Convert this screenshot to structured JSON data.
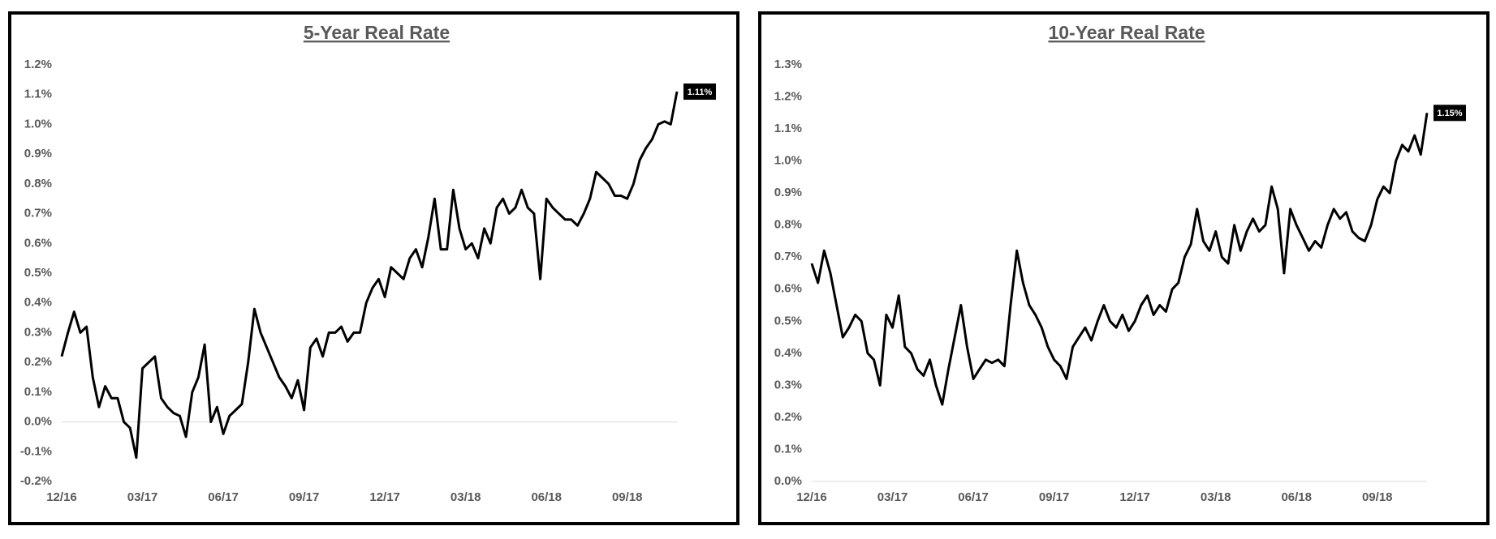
{
  "chart_data": [
    {
      "type": "line",
      "title": "5-Year Real Rate",
      "color": "#000000",
      "categories": [
        "12/16",
        null,
        null,
        null,
        null,
        null,
        null,
        null,
        null,
        null,
        null,
        null,
        null,
        "03/17",
        null,
        null,
        null,
        null,
        null,
        null,
        null,
        null,
        null,
        null,
        null,
        null,
        "06/17",
        null,
        null,
        null,
        null,
        null,
        null,
        null,
        null,
        null,
        null,
        null,
        null,
        "09/17",
        null,
        null,
        null,
        null,
        null,
        null,
        null,
        null,
        null,
        null,
        null,
        null,
        "12/17",
        null,
        null,
        null,
        null,
        null,
        null,
        null,
        null,
        null,
        null,
        null,
        null,
        "03/18",
        null,
        null,
        null,
        null,
        null,
        null,
        null,
        null,
        null,
        null,
        null,
        null,
        "06/18",
        null,
        null,
        null,
        null,
        null,
        null,
        null,
        null,
        null,
        null,
        null,
        null,
        "09/18",
        null,
        null,
        null,
        null,
        null,
        null,
        null,
        null
      ],
      "values": [
        0.22,
        0.3,
        0.37,
        0.3,
        0.32,
        0.15,
        0.05,
        0.12,
        0.08,
        0.08,
        0.0,
        -0.02,
        -0.12,
        0.18,
        0.2,
        0.22,
        0.08,
        0.05,
        0.03,
        0.02,
        -0.05,
        0.1,
        0.15,
        0.26,
        0.0,
        0.05,
        -0.04,
        0.02,
        0.04,
        0.06,
        0.2,
        0.38,
        0.3,
        0.25,
        0.2,
        0.15,
        0.12,
        0.08,
        0.14,
        0.04,
        0.25,
        0.28,
        0.22,
        0.3,
        0.3,
        0.32,
        0.27,
        0.3,
        0.3,
        0.4,
        0.45,
        0.48,
        0.42,
        0.52,
        0.5,
        0.48,
        0.55,
        0.58,
        0.52,
        0.62,
        0.75,
        0.58,
        0.58,
        0.78,
        0.65,
        0.58,
        0.6,
        0.55,
        0.65,
        0.6,
        0.72,
        0.75,
        0.7,
        0.72,
        0.78,
        0.72,
        0.7,
        0.48,
        0.75,
        0.72,
        0.7,
        0.68,
        0.68,
        0.66,
        0.7,
        0.75,
        0.84,
        0.82,
        0.8,
        0.76,
        0.76,
        0.75,
        0.8,
        0.88,
        0.92,
        0.95,
        1.0,
        1.01,
        1.0,
        1.11
      ],
      "value_labels": [
        null,
        null,
        null,
        null,
        null,
        null,
        null,
        null,
        null,
        null,
        null,
        null,
        null,
        null,
        null,
        null,
        null,
        null,
        null,
        null,
        null,
        null,
        null,
        null,
        null,
        null,
        null,
        null,
        null,
        null,
        null,
        null,
        null,
        null,
        null,
        null,
        null,
        null,
        null,
        null,
        null,
        null,
        null,
        null,
        null,
        null,
        null,
        null,
        null,
        null,
        null,
        null,
        null,
        null,
        null,
        null,
        null,
        null,
        null,
        null,
        null,
        null,
        null,
        null,
        null,
        null,
        null,
        null,
        null,
        null,
        null,
        null,
        null,
        null,
        null,
        null,
        null,
        null,
        null,
        null,
        null,
        null,
        null,
        null,
        null,
        null,
        null,
        null,
        null,
        null,
        null,
        null,
        null,
        null,
        null,
        null,
        null,
        null,
        null,
        "1.11%"
      ],
      "ylim": [
        -0.2,
        1.2
      ],
      "yticks": [
        {
          "value": -0.2,
          "label": "-0.2%"
        },
        {
          "value": -0.1,
          "label": "-0.1%"
        },
        {
          "value": 0,
          "label": "0.0%"
        },
        {
          "value": 0.1,
          "label": "0.1%"
        },
        {
          "value": 0.2,
          "label": "0.2%"
        },
        {
          "value": 0.3,
          "label": "0.3%"
        },
        {
          "value": 0.4,
          "label": "0.4%"
        },
        {
          "value": 0.5,
          "label": "0.5%"
        },
        {
          "value": 0.6,
          "label": "0.6%"
        },
        {
          "value": 0.7,
          "label": "0.7%"
        },
        {
          "value": 0.8,
          "label": "0.8%"
        },
        {
          "value": 0.9,
          "label": "0.9%"
        },
        {
          "value": 1.0,
          "label": "1.0%"
        },
        {
          "value": 1.1,
          "label": "1.1%"
        },
        {
          "value": 1.2,
          "label": "1.2%"
        }
      ],
      "grid": false
    },
    {
      "type": "line",
      "title": "10-Year Real Rate",
      "color": "#000000",
      "categories": [
        "12/16",
        null,
        null,
        null,
        null,
        null,
        null,
        null,
        null,
        null,
        null,
        null,
        null,
        "03/17",
        null,
        null,
        null,
        null,
        null,
        null,
        null,
        null,
        null,
        null,
        null,
        null,
        "06/17",
        null,
        null,
        null,
        null,
        null,
        null,
        null,
        null,
        null,
        null,
        null,
        null,
        "09/17",
        null,
        null,
        null,
        null,
        null,
        null,
        null,
        null,
        null,
        null,
        null,
        null,
        "12/17",
        null,
        null,
        null,
        null,
        null,
        null,
        null,
        null,
        null,
        null,
        null,
        null,
        "03/18",
        null,
        null,
        null,
        null,
        null,
        null,
        null,
        null,
        null,
        null,
        null,
        null,
        "06/18",
        null,
        null,
        null,
        null,
        null,
        null,
        null,
        null,
        null,
        null,
        null,
        null,
        "09/18",
        null,
        null,
        null,
        null,
        null,
        null,
        null,
        null
      ],
      "values": [
        0.68,
        0.62,
        0.72,
        0.65,
        0.55,
        0.45,
        0.48,
        0.52,
        0.5,
        0.4,
        0.38,
        0.3,
        0.52,
        0.48,
        0.58,
        0.42,
        0.4,
        0.35,
        0.33,
        0.38,
        0.3,
        0.24,
        0.35,
        0.45,
        0.55,
        0.42,
        0.32,
        0.35,
        0.38,
        0.37,
        0.38,
        0.36,
        0.55,
        0.72,
        0.62,
        0.55,
        0.52,
        0.48,
        0.42,
        0.38,
        0.36,
        0.32,
        0.42,
        0.45,
        0.48,
        0.44,
        0.5,
        0.55,
        0.5,
        0.48,
        0.52,
        0.47,
        0.5,
        0.55,
        0.58,
        0.52,
        0.55,
        0.53,
        0.6,
        0.62,
        0.7,
        0.74,
        0.85,
        0.75,
        0.72,
        0.78,
        0.7,
        0.68,
        0.8,
        0.72,
        0.78,
        0.82,
        0.78,
        0.8,
        0.92,
        0.85,
        0.65,
        0.85,
        0.8,
        0.76,
        0.72,
        0.75,
        0.73,
        0.8,
        0.85,
        0.82,
        0.84,
        0.78,
        0.76,
        0.75,
        0.8,
        0.88,
        0.92,
        0.9,
        1.0,
        1.05,
        1.03,
        1.08,
        1.02,
        1.15
      ],
      "value_labels": [
        null,
        null,
        null,
        null,
        null,
        null,
        null,
        null,
        null,
        null,
        null,
        null,
        null,
        null,
        null,
        null,
        null,
        null,
        null,
        null,
        null,
        null,
        null,
        null,
        null,
        null,
        null,
        null,
        null,
        null,
        null,
        null,
        null,
        null,
        null,
        null,
        null,
        null,
        null,
        null,
        null,
        null,
        null,
        null,
        null,
        null,
        null,
        null,
        null,
        null,
        null,
        null,
        null,
        null,
        null,
        null,
        null,
        null,
        null,
        null,
        null,
        null,
        null,
        null,
        null,
        null,
        null,
        null,
        null,
        null,
        null,
        null,
        null,
        null,
        null,
        null,
        null,
        null,
        null,
        null,
        null,
        null,
        null,
        null,
        null,
        null,
        null,
        null,
        null,
        null,
        null,
        null,
        null,
        null,
        null,
        null,
        null,
        null,
        null,
        "1.15%"
      ],
      "ylim": [
        0,
        1.3
      ],
      "yticks": [
        {
          "value": 0,
          "label": "0.0%"
        },
        {
          "value": 0.1,
          "label": "0.1%"
        },
        {
          "value": 0.2,
          "label": "0.2%"
        },
        {
          "value": 0.3,
          "label": "0.3%"
        },
        {
          "value": 0.4,
          "label": "0.4%"
        },
        {
          "value": 0.5,
          "label": "0.5%"
        },
        {
          "value": 0.6,
          "label": "0.6%"
        },
        {
          "value": 0.7,
          "label": "0.7%"
        },
        {
          "value": 0.8,
          "label": "0.8%"
        },
        {
          "value": 0.9,
          "label": "0.9%"
        },
        {
          "value": 1.0,
          "label": "1.0%"
        },
        {
          "value": 1.1,
          "label": "1.1%"
        },
        {
          "value": 1.2,
          "label": "1.2%"
        },
        {
          "value": 1.3,
          "label": "1.3%"
        }
      ],
      "grid": false
    }
  ]
}
